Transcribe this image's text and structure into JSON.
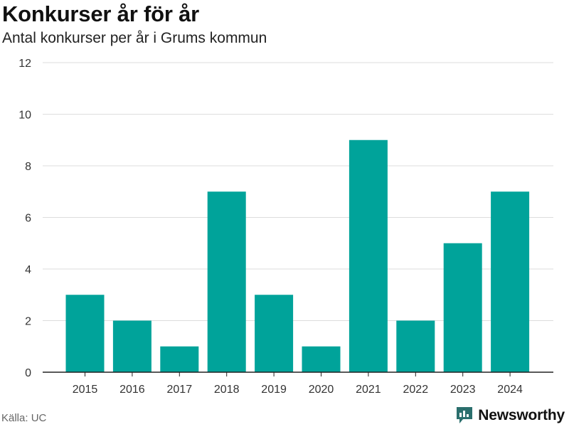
{
  "colors": {
    "bar": "#00a39a",
    "grid": "#dddddd",
    "axis": "#222222",
    "brand": "#2b6f6d",
    "source_text": "#666666"
  },
  "header": {
    "title": "Konkurser år för år",
    "subtitle": "Antal konkurser per år i Grums kommun"
  },
  "footer": {
    "source": "Källa: UC",
    "brand_name": "Newsworthy",
    "brand_icon": "newsworthy-logo-icon"
  },
  "chart_data": {
    "type": "bar",
    "categories": [
      "2015",
      "2016",
      "2017",
      "2018",
      "2019",
      "2020",
      "2021",
      "2022",
      "2023",
      "2024"
    ],
    "values": [
      3,
      2,
      1,
      7,
      3,
      1,
      9,
      2,
      5,
      7
    ],
    "title": "Konkurser år för år",
    "subtitle": "Antal konkurser per år i Grums kommun",
    "ylim": [
      0,
      12
    ],
    "yticks": [
      "0",
      "2",
      "4",
      "6",
      "8",
      "10",
      "12"
    ],
    "grid": true,
    "legend": "none"
  }
}
